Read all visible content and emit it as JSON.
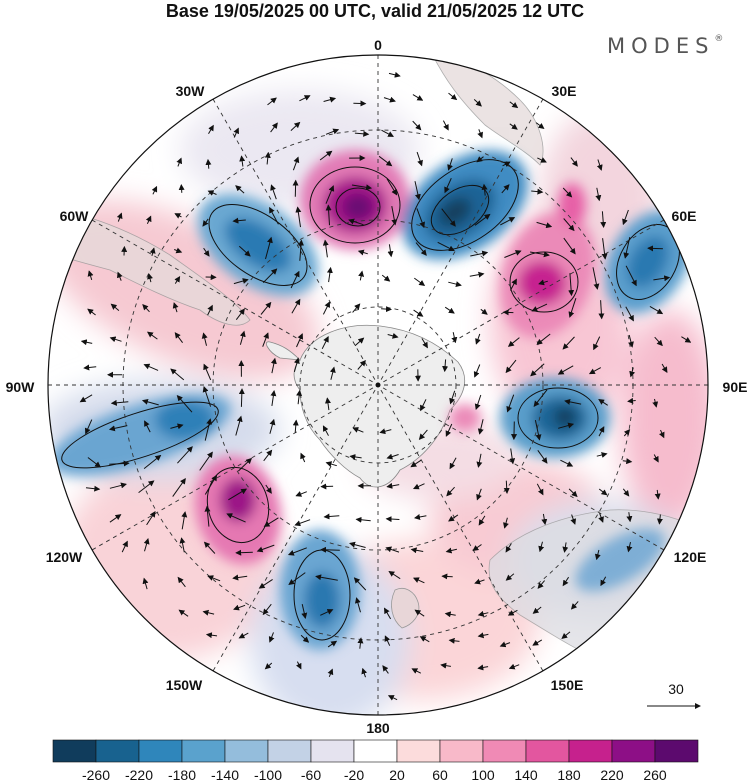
{
  "title": "Base 19/05/2025 00 UTC, valid 21/05/2025 12 UTC",
  "brand": "MODES",
  "brand_mark": "®",
  "longitude_labels": {
    "lon_0": "0",
    "lon_30e": "30E",
    "lon_60e": "60E",
    "lon_90e": "90E",
    "lon_120e": "120E",
    "lon_150e": "150E",
    "lon_180": "180",
    "lon_150w": "150W",
    "lon_120w": "120W",
    "lon_90w": "90W",
    "lon_60w": "60W",
    "lon_30w": "30W"
  },
  "vector_reference": {
    "value": "30"
  },
  "colorbar": {
    "colors": [
      "#103c5c",
      "#18628f",
      "#2f86bb",
      "#5aa2cd",
      "#94bddc",
      "#c3d2e6",
      "#e5e3ef",
      "#ffffff",
      "#fcdcdc",
      "#f8b9c9",
      "#f08ab5",
      "#e3569f",
      "#c6218d",
      "#8d0f86",
      "#5c0a6e"
    ],
    "labels": [
      "-260",
      "-220",
      "-180",
      "-140",
      "-100",
      "-60",
      "-20",
      "20",
      "60",
      "100",
      "140",
      "180",
      "220",
      "260"
    ]
  },
  "anomaly_centers": [
    {
      "sign": "positive",
      "level": 260,
      "location": "between 0 and 30W"
    },
    {
      "sign": "negative",
      "level": -220,
      "location": "between 0 and 30E"
    },
    {
      "sign": "negative",
      "level": -180,
      "location": "between 30W and 60W"
    },
    {
      "sign": "positive",
      "level": 220,
      "location": "between 30E and 60E"
    },
    {
      "sign": "negative",
      "level": -180,
      "location": "near 60E"
    },
    {
      "sign": "negative",
      "level": -220,
      "location": "near 90E"
    },
    {
      "sign": "negative",
      "level": -180,
      "location": "near 90W"
    },
    {
      "sign": "positive",
      "level": 220,
      "location": "near 120W"
    },
    {
      "sign": "negative",
      "level": -180,
      "location": "between 150W and 180"
    },
    {
      "sign": "positive",
      "level": 140,
      "location": "near 100E"
    }
  ]
}
